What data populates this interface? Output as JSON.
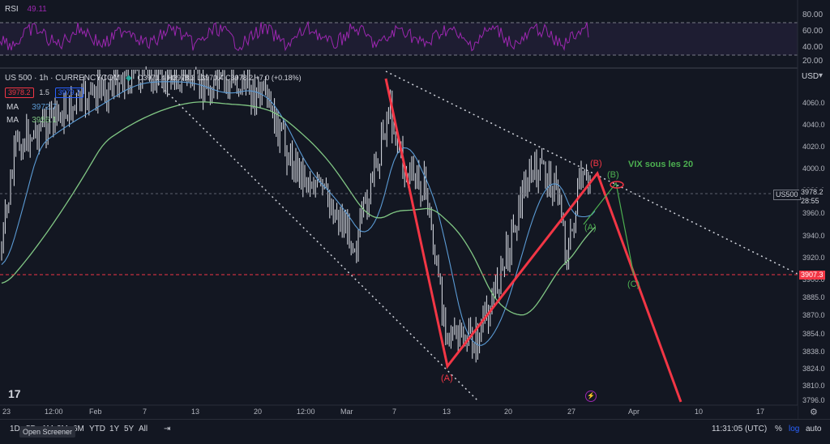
{
  "rsi": {
    "label": "RSI",
    "value": "49.11",
    "ticks": [
      "80.00",
      "60.00",
      "40.00",
      "20.00"
    ]
  },
  "legend": {
    "symbol": "US 500 · 1h · CURRENCYCOM",
    "ohlc": "O3971.4 H3978.2 L3970.4 C3978.2 +7.0 (+0.18%)",
    "sell_price": "3978.2",
    "spread": "1.5",
    "buy_price": "3979.7",
    "ma1_label": "MA",
    "ma1_value": "3972.7",
    "ma2_label": "MA",
    "ma2_value": "3956.1"
  },
  "price_axis": {
    "currency": "USD",
    "ticks": [
      "4060.0",
      "4040.0",
      "4020.0",
      "4000.0",
      "3980.0",
      "3960.0",
      "3940.0",
      "3920.0",
      "3900.0",
      "3885.0",
      "3870.0",
      "3854.0",
      "3838.0",
      "3824.0",
      "3810.0",
      "3796.0"
    ],
    "current_symbol": "US500",
    "current_price": "3978.2",
    "countdown": "28:55",
    "level_price": "3907.3"
  },
  "time_axis": {
    "ticks": [
      "23",
      "12:00",
      "Feb",
      "7",
      "13",
      "20",
      "12:00",
      "Mar",
      "7",
      "13",
      "20",
      "27",
      "Apr",
      "10",
      "17"
    ]
  },
  "annotations": {
    "wave_a": "(A)",
    "wave_b_red": "(B)",
    "wave_b_green": "(B)",
    "wave_a_green": "(A)",
    "wave_c": "(C)",
    "vix_note": "VIX sous les 20"
  },
  "toolbar": {
    "timeframes": [
      "1D",
      "5D",
      "1M",
      "3M",
      "6M",
      "YTD",
      "1Y",
      "5Y",
      "All"
    ],
    "clock": "11:31:05 (UTC)",
    "percent": "%",
    "log": "log",
    "auto": "auto",
    "tooltip": "Open Screener"
  },
  "colors": {
    "background": "#131722",
    "rsi": "#9c27b0",
    "ma_blue": "#5b9bd5",
    "ma_green": "#81c784",
    "wave_red": "#f23645",
    "level_red": "#f23645",
    "accent": "#2962ff"
  }
}
